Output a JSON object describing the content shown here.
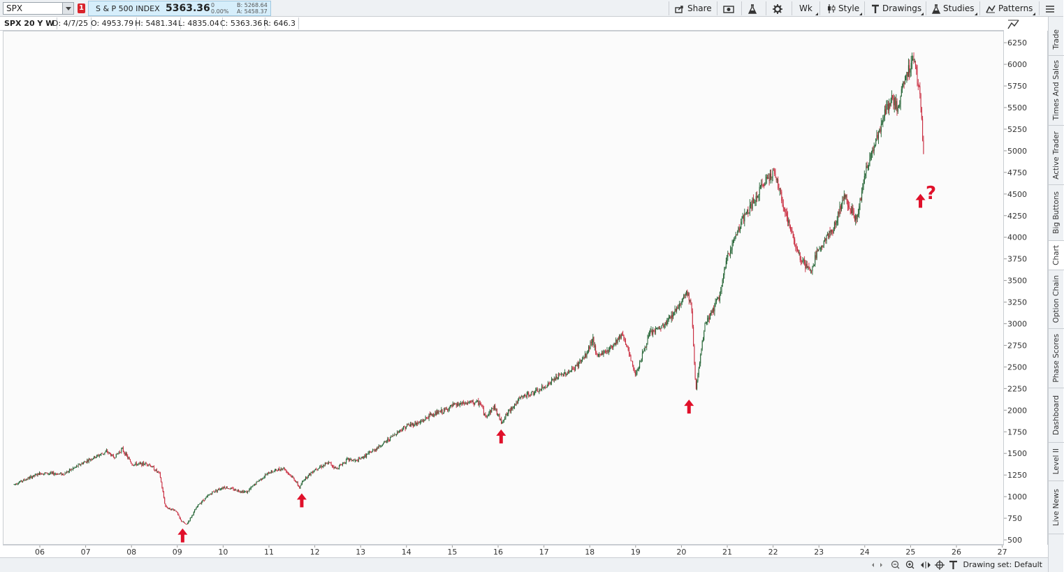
{
  "toolbar": {
    "symbol": "SPX",
    "link_badge": "1",
    "instrument_name": "S & P 500 INDEX",
    "last_price": "5363.36",
    "net_change": "0",
    "pct_change": "0.00%",
    "bid": "B: 5268.64",
    "ask": "A: 5458.37",
    "share_label": "Share",
    "aggregation_label": "Wk",
    "style_label": "Style",
    "drawings_label": "Drawings",
    "studies_label": "Studies",
    "patterns_label": "Patterns"
  },
  "info_bar": {
    "title": "SPX 20 Y W",
    "date": "D: 4/7/25",
    "open": "O: 4953.79",
    "high": "H: 5481.34",
    "low": "L: 4835.04",
    "close": "C: 5363.36",
    "range": "R: 646.3"
  },
  "annotation": {
    "question_mark": "?",
    "arrow_color": "#e0102a"
  },
  "bottom_bar": {
    "drawing_set": "Drawing set: Default"
  },
  "side_tabs": [
    "Trade",
    "Times And Sales",
    "Active Trader",
    "Big Buttons",
    "Chart",
    "Option Chain",
    "Phase Scores",
    "Dashboard",
    "Level II",
    "Live News"
  ],
  "active_side_tab": "Chart",
  "colors": {
    "up_candle": "#1d5f2e",
    "down_candle": "#c8263a",
    "price_panel": "#d6eefb"
  },
  "chart_data": {
    "type": "candlestick",
    "title": "",
    "x_ticks": [
      "06",
      "07",
      "08",
      "09",
      "10",
      "11",
      "12",
      "13",
      "14",
      "15",
      "16",
      "17",
      "18",
      "19",
      "20",
      "21",
      "22",
      "23",
      "24",
      "25",
      "26",
      "27"
    ],
    "y_ticks": [
      500,
      750,
      1000,
      1250,
      1500,
      1750,
      2000,
      2250,
      2500,
      2750,
      3000,
      3250,
      3500,
      3750,
      4000,
      4250,
      4500,
      4750,
      5000,
      5250,
      5500,
      5750,
      6000,
      6250
    ],
    "ylim": [
      500,
      6250
    ],
    "xlim": [
      2005.4,
      2027.0
    ],
    "grid": false,
    "series": [
      {
        "x": [
          2005.42,
          2006.0,
          2006.5,
          2007.0,
          2007.45,
          2007.6,
          2007.78,
          2008.0,
          2008.35,
          2008.6,
          2008.72,
          2008.8,
          2008.95,
          2009.05,
          2009.18,
          2009.45,
          2009.75,
          2010.0,
          2010.3,
          2010.5,
          2010.75,
          2011.0,
          2011.3,
          2011.55,
          2011.65,
          2011.75,
          2012.0,
          2012.3,
          2012.45,
          2012.7,
          2012.9,
          2013.2,
          2013.5,
          2013.8,
          2014.0,
          2014.3,
          2014.5,
          2014.8,
          2015.0,
          2015.4,
          2015.6,
          2015.7,
          2015.9,
          2016.05,
          2016.3,
          2016.5,
          2016.9,
          2017.3,
          2017.6,
          2017.9,
          2018.05,
          2018.12,
          2018.4,
          2018.7,
          2018.85,
          2018.98,
          2019.3,
          2019.6,
          2019.9,
          2020.1,
          2020.2,
          2020.3,
          2020.5,
          2020.8,
          2021.0,
          2021.3,
          2021.6,
          2021.85,
          2022.0,
          2022.2,
          2022.45,
          2022.6,
          2022.8,
          2023.0,
          2023.3,
          2023.55,
          2023.8,
          2024.0,
          2024.2,
          2024.4,
          2024.55,
          2024.7,
          2024.9,
          2025.05,
          2025.1,
          2025.2,
          2025.27
        ],
        "values": [
          1150,
          1280,
          1270,
          1420,
          1530,
          1460,
          1560,
          1380,
          1390,
          1270,
          900,
          870,
          850,
          740,
          680,
          920,
          1060,
          1120,
          1080,
          1060,
          1190,
          1290,
          1340,
          1200,
          1110,
          1210,
          1330,
          1400,
          1330,
          1440,
          1420,
          1520,
          1630,
          1760,
          1830,
          1870,
          1950,
          2000,
          2060,
          2100,
          2090,
          1930,
          2050,
          1870,
          2050,
          2160,
          2240,
          2400,
          2470,
          2640,
          2850,
          2630,
          2710,
          2900,
          2640,
          2420,
          2900,
          2980,
          3200,
          3380,
          3220,
          2240,
          3000,
          3300,
          3800,
          4200,
          4450,
          4700,
          4770,
          4400,
          3950,
          3750,
          3600,
          3900,
          4100,
          4500,
          4200,
          4750,
          5100,
          5400,
          5600,
          5500,
          5900,
          6090,
          5950,
          5650,
          4900
        ]
      }
    ],
    "annotations": [
      {
        "type": "arrow-up",
        "x": 2009.1,
        "y": 560
      },
      {
        "type": "arrow-up",
        "x": 2011.7,
        "y": 965
      },
      {
        "type": "arrow-up",
        "x": 2016.05,
        "y": 1705
      },
      {
        "type": "arrow-up",
        "x": 2020.15,
        "y": 2050
      },
      {
        "type": "arrow-up",
        "x": 2025.2,
        "y": 4430
      }
    ]
  }
}
